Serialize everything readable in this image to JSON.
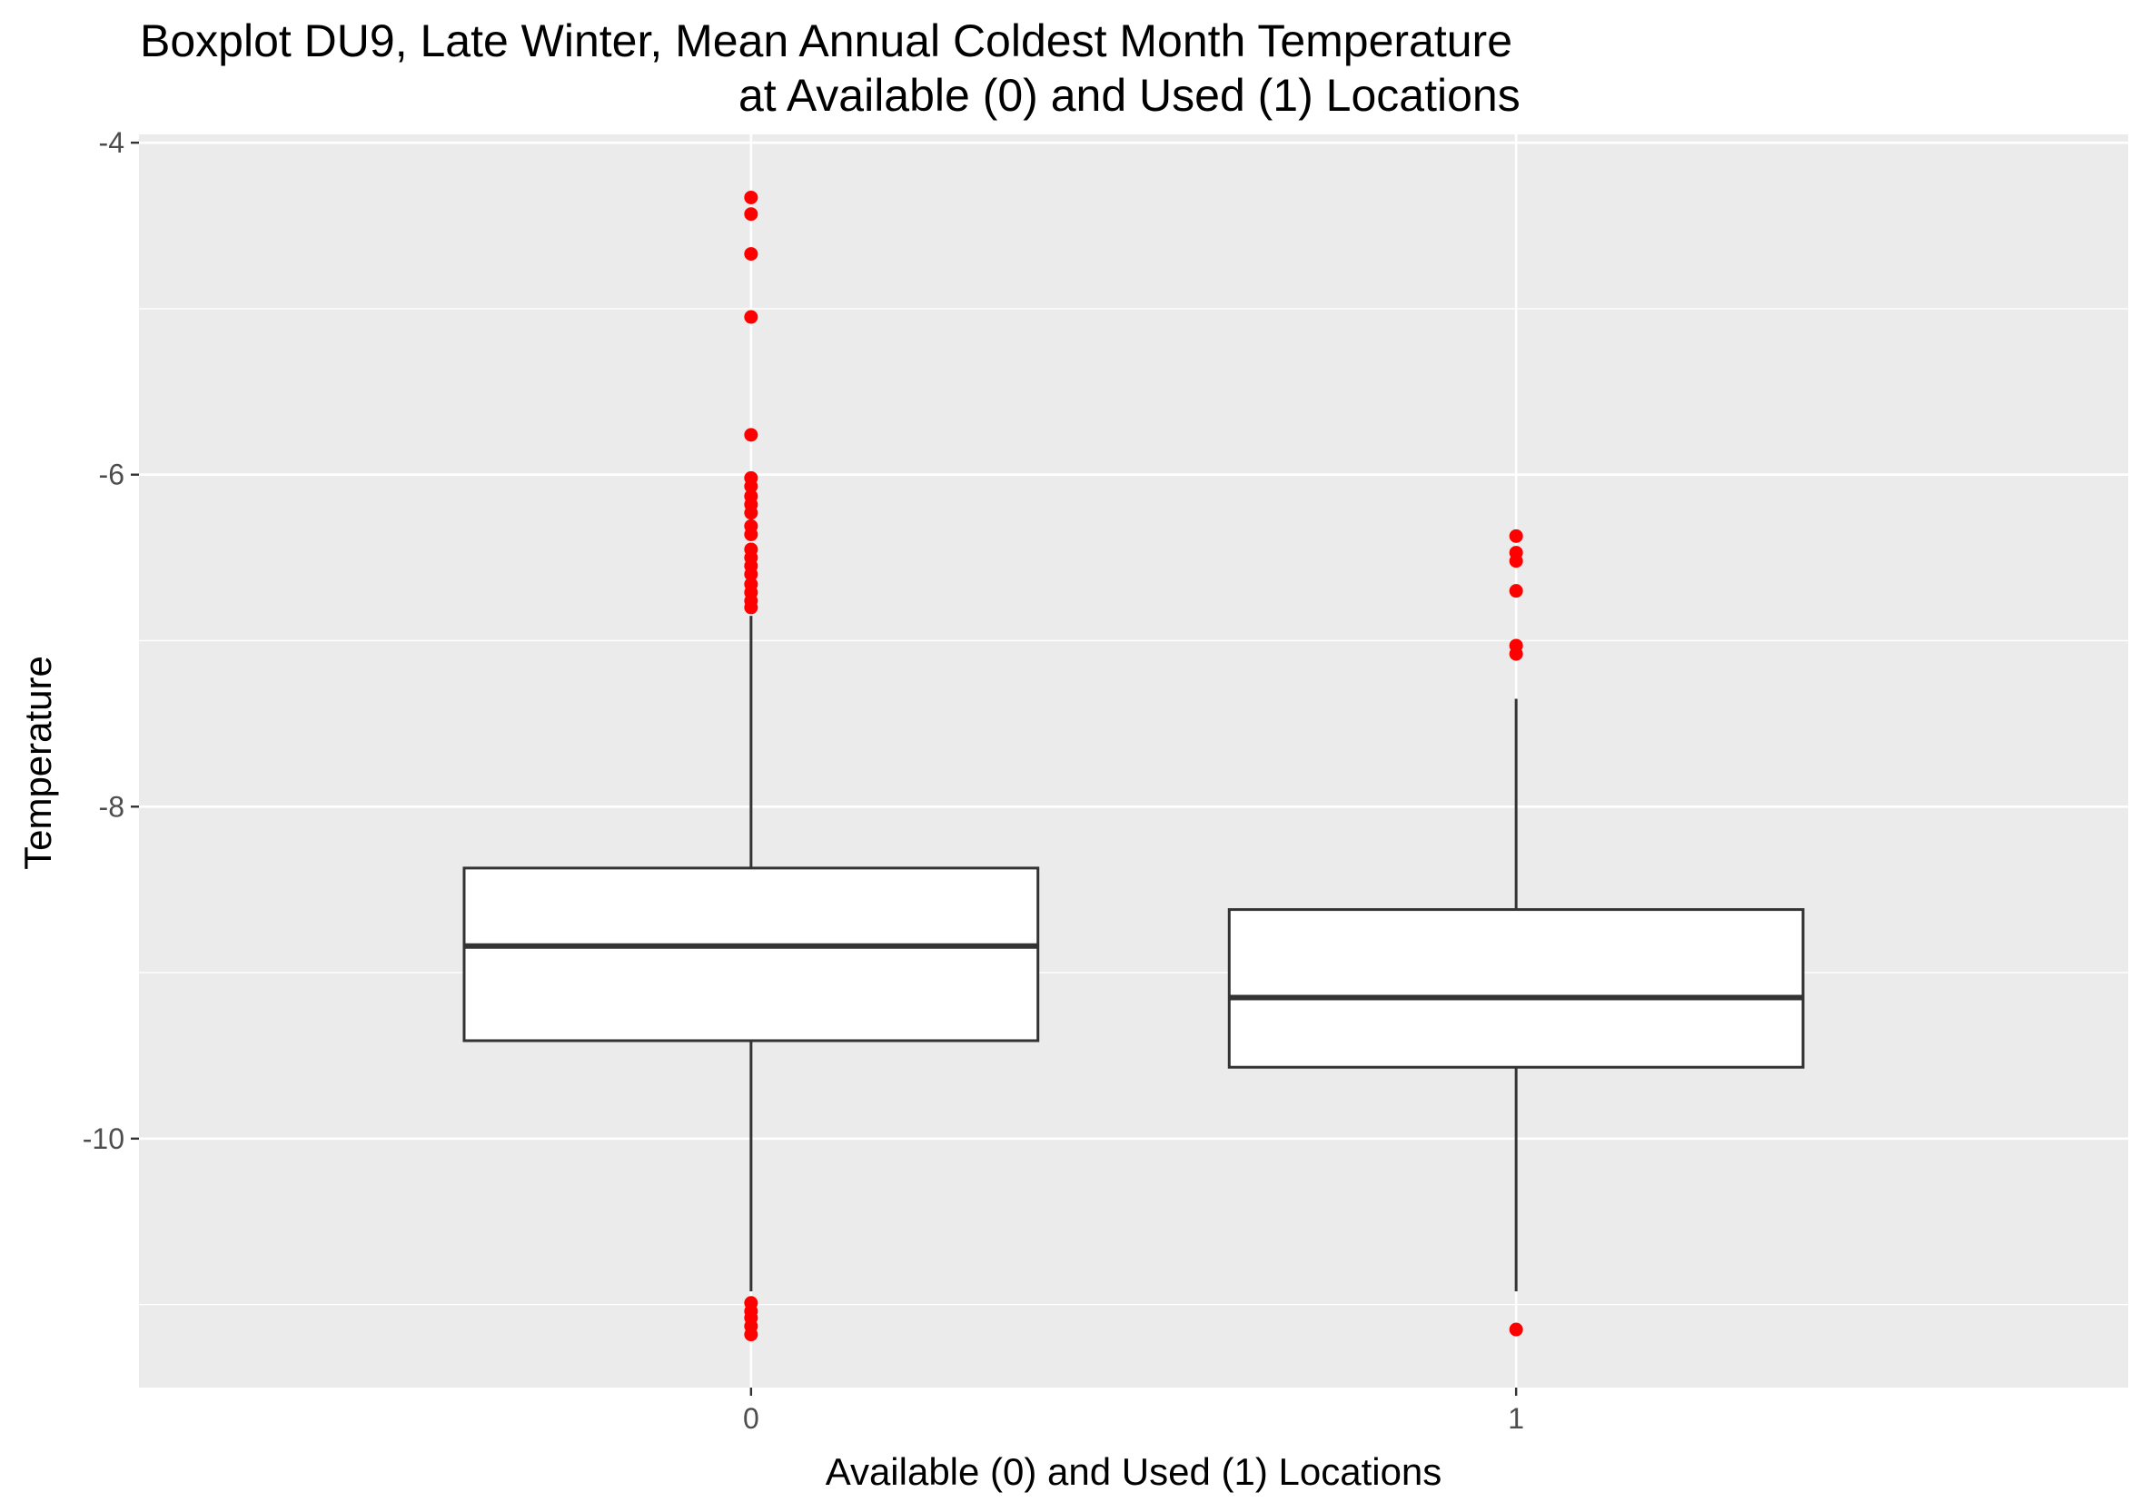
{
  "chart_data": {
    "type": "boxplot",
    "title_lines": [
      "Boxplot DU9, Late Winter, Mean Annual Coldest Month Temperature",
      "at Available (0) and Used (1) Locations"
    ],
    "xlabel": "Available (0) and Used (1) Locations",
    "ylabel": "Temperature",
    "categories": [
      "0",
      "1"
    ],
    "ylim": [
      -11.5,
      -3.95
    ],
    "y_ticks": [
      -10,
      -8,
      -6,
      -4
    ],
    "y_tick_labels": [
      "-10",
      "-8",
      "-6",
      "-4"
    ],
    "y_minor_ticks": [
      -11,
      -9,
      -7,
      -5
    ],
    "grid": true,
    "legend": "none",
    "colors": {
      "panel": "#ebebeb",
      "grid": "#ffffff",
      "box_fill": "#ffffff",
      "box_line": "#333333",
      "outlier": "#ff0000"
    },
    "boxes": [
      {
        "category": "0",
        "whisker_low": -10.92,
        "q1": -9.41,
        "median": -8.84,
        "q3": -8.37,
        "whisker_high": -6.85,
        "outliers": [
          -4.33,
          -4.43,
          -4.67,
          -5.05,
          -5.76,
          -6.02,
          -6.07,
          -6.13,
          -6.18,
          -6.23,
          -6.31,
          -6.36,
          -6.45,
          -6.5,
          -6.55,
          -6.6,
          -6.66,
          -6.71,
          -6.76,
          -6.8,
          -10.99,
          -11.04,
          -11.08,
          -11.13,
          -11.18
        ]
      },
      {
        "category": "1",
        "whisker_low": -10.92,
        "q1": -9.57,
        "median": -9.15,
        "q3": -8.62,
        "whisker_high": -7.35,
        "outliers": [
          -6.37,
          -6.47,
          -6.52,
          -6.7,
          -7.03,
          -7.08,
          -11.15
        ]
      }
    ]
  }
}
